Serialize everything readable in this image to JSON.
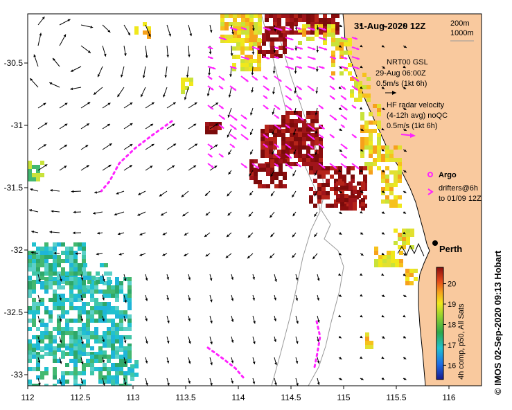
{
  "map": {
    "title": "31-Aug-2020 12Z",
    "scale_labels": [
      "200m",
      "1000m"
    ],
    "model": {
      "name": "NRT00 GSL",
      "time": "29-Aug 06:00Z",
      "ref_speed": "0.5m/s (1kt 6h)"
    },
    "radar": {
      "line1": "HF radar velocity",
      "line2": "(4-12h avg) noQC",
      "ref_speed": "0.5m/s (1kt 6h)"
    },
    "argo_label": "Argo",
    "drifters": {
      "line1": "drifters@6h",
      "line2": "to 01/09 12Z"
    },
    "city": "Perth",
    "colorbar_caption": "4h comp, p50, All Sats",
    "colorbar_ticks": [
      16,
      17,
      18,
      19,
      20
    ],
    "credit": "© IMOS 02-Sep-2020 09:13 Hobart",
    "x_ticks": [
      "112",
      "112.5",
      "113",
      "113.5",
      "114",
      "114.5",
      "115",
      "115.5",
      "116"
    ],
    "y_ticks": [
      "-30.5",
      "-31",
      "-31.5",
      "-32",
      "-32.5",
      "-33"
    ],
    "colors": {
      "land": "#f9c99e",
      "radar": "#ff22ff",
      "coast": "#999999"
    }
  }
}
